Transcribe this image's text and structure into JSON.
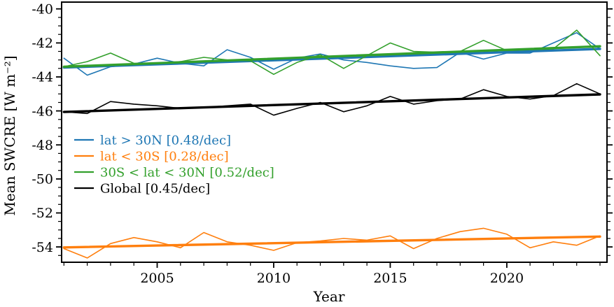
{
  "figure": {
    "background": "#ffffff"
  },
  "chart_data": {
    "type": "line",
    "title": "",
    "xlabel": "Year",
    "ylabel": "Mean SWCRE [W m⁻²]",
    "grid": false,
    "legend_position": "center-left",
    "x": [
      2001,
      2002,
      2003,
      2004,
      2005,
      2006,
      2007,
      2008,
      2009,
      2010,
      2011,
      2012,
      2013,
      2014,
      2015,
      2016,
      2017,
      2018,
      2019,
      2020,
      2021,
      2022,
      2023,
      2024
    ],
    "xlim": [
      2000.9,
      2024.3
    ],
    "ylim": [
      -54.9,
      -39.6
    ],
    "xticks": [
      2005,
      2010,
      2015,
      2020
    ],
    "yticks": [
      -40,
      -42,
      -44,
      -46,
      -48,
      -50,
      -52,
      -54
    ],
    "x_minor_step": 1,
    "y_minor_step": 0.5,
    "series": [
      {
        "name": "lat > 30N",
        "slug": "lat-gt-30n",
        "legend_label": "lat > 30N [0.48/dec]",
        "trend_per_decade": 0.48,
        "color": "#1f77b4",
        "values": [
          -42.9,
          -43.9,
          -43.4,
          -43.25,
          -42.9,
          -43.2,
          -43.35,
          -42.4,
          -42.85,
          -43.55,
          -42.9,
          -42.65,
          -43.0,
          -43.15,
          -43.35,
          -43.5,
          -43.45,
          -42.55,
          -42.95,
          -42.6,
          -42.6,
          -42.0,
          -41.4,
          -42.35
        ],
        "trend_endpoints": [
          -43.45,
          -42.35
        ]
      },
      {
        "name": "lat < 30S",
        "slug": "lat-lt-30s",
        "legend_label": "lat < 30S [0.28/dec]",
        "trend_per_decade": 0.28,
        "color": "#ff7f0e",
        "values": [
          -54.1,
          -54.65,
          -53.8,
          -53.45,
          -53.7,
          -54.05,
          -53.15,
          -53.7,
          -53.9,
          -54.2,
          -53.75,
          -53.65,
          -53.5,
          -53.6,
          -53.35,
          -54.1,
          -53.5,
          -53.1,
          -52.9,
          -53.25,
          -54.05,
          -53.7,
          -53.9,
          -53.35
        ],
        "trend_endpoints": [
          -54.03,
          -53.39
        ]
      },
      {
        "name": "30S < lat < 30N",
        "slug": "lat-30s-30n",
        "legend_label": "30S < lat < 30N [0.52/dec]",
        "trend_per_decade": 0.52,
        "color": "#33a02c",
        "values": [
          -43.4,
          -43.1,
          -42.6,
          -43.2,
          -43.2,
          -43.1,
          -42.85,
          -43.0,
          -43.05,
          -43.85,
          -43.15,
          -42.7,
          -43.5,
          -42.75,
          -42.0,
          -42.5,
          -42.55,
          -42.5,
          -41.85,
          -42.45,
          -42.4,
          -42.35,
          -41.25,
          -42.75
        ],
        "trend_endpoints": [
          -43.4,
          -42.2
        ]
      },
      {
        "name": "Global",
        "slug": "global",
        "legend_label": "Global [0.45/dec]",
        "trend_per_decade": 0.45,
        "color": "#000000",
        "values": [
          -46.05,
          -46.15,
          -45.45,
          -45.6,
          -45.7,
          -45.85,
          -45.8,
          -45.7,
          -45.6,
          -46.25,
          -45.85,
          -45.5,
          -46.05,
          -45.7,
          -45.15,
          -45.6,
          -45.4,
          -45.3,
          -44.75,
          -45.15,
          -45.3,
          -45.1,
          -44.4,
          -45.0
        ],
        "trend_endpoints": [
          -46.06,
          -45.03
        ]
      }
    ]
  }
}
